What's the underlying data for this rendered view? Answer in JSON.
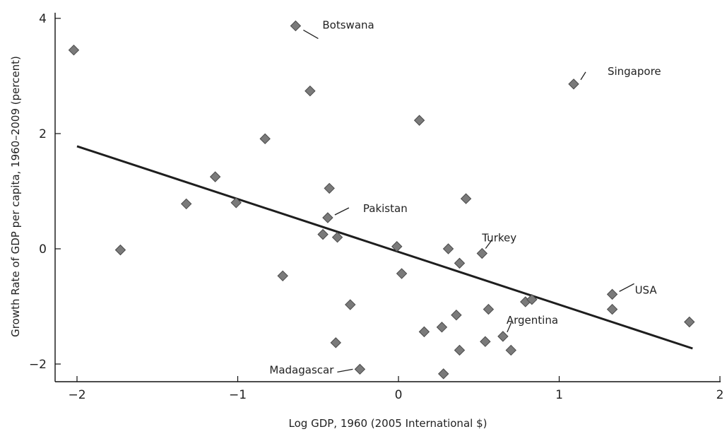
{
  "chart_data": {
    "type": "scatter",
    "xlabel": "Log GDP, 1960 (2005 International $)",
    "ylabel": "Growth Rate of GDP per capita, 1960–2009 (percent)",
    "xlim": [
      -2.1,
      2.05
    ],
    "ylim": [
      -2.3,
      4.2
    ],
    "x_ticks": [
      {
        "value": -2,
        "label": "−2"
      },
      {
        "value": -1,
        "label": "−1"
      },
      {
        "value": 0,
        "label": "0"
      },
      {
        "value": 1,
        "label": "1"
      },
      {
        "value": 2,
        "label": "2"
      }
    ],
    "y_ticks": [
      {
        "value": -2,
        "label": "−2"
      },
      {
        "value": 0,
        "label": "0"
      },
      {
        "value": 2,
        "label": "2"
      },
      {
        "value": 4,
        "label": "4"
      }
    ],
    "grid": false,
    "marker_color": "#7a7a7a",
    "trend_line": {
      "x": [
        -2.0,
        1.83
      ],
      "y": [
        1.78,
        -1.73
      ]
    },
    "points": [
      {
        "x": -2.02,
        "y": 3.45
      },
      {
        "x": -1.73,
        "y": -0.02
      },
      {
        "x": -1.32,
        "y": 0.78
      },
      {
        "x": -1.14,
        "y": 1.25
      },
      {
        "x": -1.01,
        "y": 0.8
      },
      {
        "x": -0.83,
        "y": 1.91
      },
      {
        "x": -0.72,
        "y": -0.47
      },
      {
        "x": -0.64,
        "y": 3.87,
        "label": "Botswana"
      },
      {
        "x": -0.55,
        "y": 2.74
      },
      {
        "x": -0.47,
        "y": 0.25
      },
      {
        "x": -0.43,
        "y": 1.05
      },
      {
        "x": -0.44,
        "y": 0.54,
        "label": "Pakistan"
      },
      {
        "x": -0.38,
        "y": 0.2
      },
      {
        "x": -0.39,
        "y": -1.63
      },
      {
        "x": -0.3,
        "y": -0.97
      },
      {
        "x": -0.24,
        "y": -2.09,
        "label": "Madagascar"
      },
      {
        "x": -0.01,
        "y": 0.04
      },
      {
        "x": 0.02,
        "y": -0.43
      },
      {
        "x": 0.13,
        "y": 2.23
      },
      {
        "x": 0.16,
        "y": -1.44
      },
      {
        "x": 0.27,
        "y": -1.36
      },
      {
        "x": 0.28,
        "y": -2.17
      },
      {
        "x": 0.31,
        "y": 0.0
      },
      {
        "x": 0.36,
        "y": -1.15
      },
      {
        "x": 0.38,
        "y": -0.25
      },
      {
        "x": 0.38,
        "y": -1.76
      },
      {
        "x": 0.42,
        "y": 0.87
      },
      {
        "x": 0.52,
        "y": -0.08,
        "label": "Turkey"
      },
      {
        "x": 0.54,
        "y": -1.61
      },
      {
        "x": 0.56,
        "y": -1.05
      },
      {
        "x": 0.65,
        "y": -1.52,
        "label": "Argentina"
      },
      {
        "x": 0.7,
        "y": -1.76
      },
      {
        "x": 0.79,
        "y": -0.92
      },
      {
        "x": 0.83,
        "y": -0.88
      },
      {
        "x": 1.09,
        "y": 2.86,
        "label": "Singapore"
      },
      {
        "x": 1.33,
        "y": -0.79,
        "label": "USA"
      },
      {
        "x": 1.33,
        "y": -1.05
      },
      {
        "x": 1.81,
        "y": -1.27
      }
    ]
  }
}
